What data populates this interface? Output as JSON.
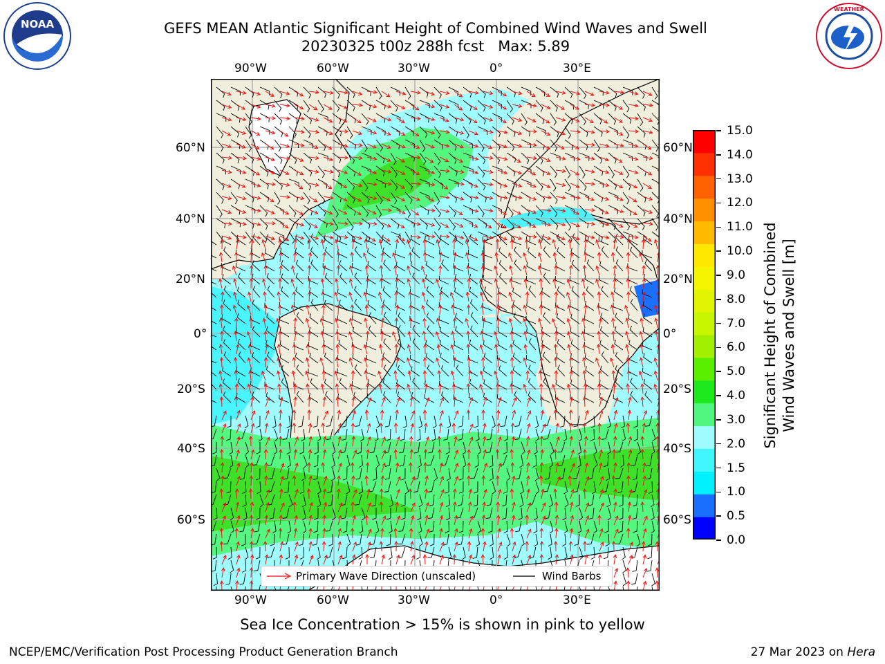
{
  "header": {
    "title_line1": "GEFS MEAN Atlantic Significant Height of Combined Wind Waves and Swell",
    "title_line2": "20230325 t00z 288h fcst   Max: 5.89"
  },
  "logos": {
    "left": {
      "icon": "noaa-logo",
      "text": "NOAA"
    },
    "right": {
      "icon": "nws-logo",
      "text": "NATIONAL WEATHER SERVICE"
    }
  },
  "map": {
    "lon_labels": [
      "90°W",
      "60°W",
      "30°W",
      "0°",
      "30°E"
    ],
    "lat_labels_left": [
      "60°N",
      "40°N",
      "20°N",
      "0°",
      "20°S",
      "40°S",
      "60°S"
    ],
    "lat_labels_right": [
      "60°N",
      "40°N",
      "20°N",
      "0°",
      "20°S",
      "40°S",
      "60°S"
    ],
    "legend": {
      "wave_direction": "Primary Wave Direction (unscaled)",
      "wind_barbs": "Wind Barbs"
    },
    "colors": {
      "land": "#f0eedc",
      "ocean_low": "#9ffcff",
      "ocean_mid": "#49f6ff",
      "swell_high": "#54f77f",
      "swell_peak": "#3fe02a",
      "arrow": "#ee1111",
      "barb": "#000000"
    }
  },
  "colorbar": {
    "label": "Significant Height of Combined Wind Waves and Swell [m]",
    "label_line1": "Significant Height of Combined",
    "label_line2": "Wind Waves and Swell [m]",
    "ticks": [
      "15.0",
      "14.0",
      "13.0",
      "12.0",
      "11.0",
      "10.0",
      "9.0",
      "8.0",
      "7.0",
      "6.0",
      "5.0",
      "4.0",
      "3.0",
      "2.0",
      "1.5",
      "1.0",
      "0.5",
      "0.0"
    ],
    "colors": [
      "#0000ff",
      "#1a6fff",
      "#00f0ff",
      "#40f6ff",
      "#9ffcff",
      "#4ff77f",
      "#1ee81e",
      "#58f000",
      "#a2f000",
      "#c8f500",
      "#e2f500",
      "#f5f500",
      "#ffe800",
      "#ffbb00",
      "#ff9000",
      "#ff6000",
      "#ff3000",
      "#ff0000"
    ]
  },
  "footer": {
    "ice_note": "Sea Ice Concentration > 15% is shown in pink to yellow",
    "credit": "NCEP/EMC/Verification Post Processing Product Generation Branch",
    "date": "27 Mar 2023 on ",
    "host": "Hera"
  }
}
